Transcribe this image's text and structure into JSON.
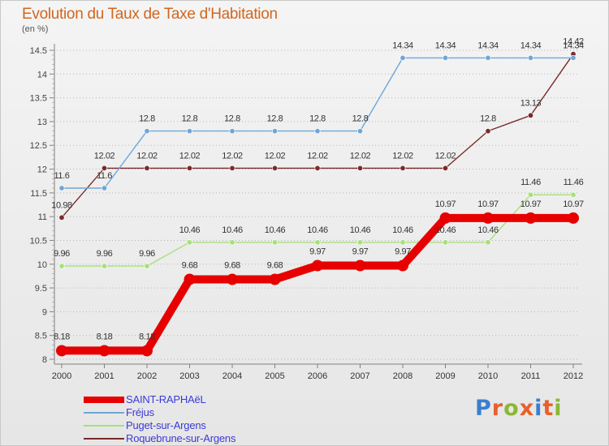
{
  "header": {
    "title": "Evolution du Taux de Taxe d'Habitation",
    "unit": "(en %)"
  },
  "logo": {
    "text": "Proxiti",
    "letter_colors": [
      "#3a7fcf",
      "#e8602c",
      "#8ab833",
      "#e8602c",
      "#3a7fcf",
      "#e8602c",
      "#8ab833"
    ]
  },
  "chart_data": {
    "type": "line",
    "title": "Evolution du Taux de Taxe d'Habitation",
    "ylabel": "(en %)",
    "xlabel": "",
    "x": [
      "2000",
      "2001",
      "2002",
      "2003",
      "2004",
      "2005",
      "2006",
      "2007",
      "2008",
      "2009",
      "2010",
      "2011",
      "2012"
    ],
    "ylim": [
      8,
      14.5
    ],
    "yticks": [
      "8",
      "8.5",
      "9",
      "9.5",
      "10",
      "10.5",
      "11",
      "11.5",
      "12",
      "12.5",
      "13",
      "13.5",
      "14",
      "14.5"
    ],
    "grid": "horizontal dotted",
    "step": true,
    "legend_position": "bottom-left",
    "series": [
      {
        "name": "SAINT-RAPHAëL",
        "color": "#e60000",
        "values": [
          8.18,
          8.18,
          8.18,
          9.68,
          9.68,
          9.68,
          9.97,
          9.97,
          9.97,
          10.97,
          10.97,
          10.97,
          10.97
        ],
        "labels": [
          "8.18",
          "8.18",
          "8.18",
          "9.68",
          "9.68",
          "9.68",
          "9.97",
          "9.97",
          "9.97",
          "10.97",
          "10.97",
          "10.97",
          "10.97"
        ]
      },
      {
        "name": "Fréjus",
        "color": "#6fa6d6",
        "values": [
          11.6,
          11.6,
          12.8,
          12.8,
          12.8,
          12.8,
          12.8,
          12.8,
          14.34,
          14.34,
          14.34,
          14.34,
          14.34
        ],
        "labels": [
          "11.6",
          "11.6",
          "12.8",
          "12.8",
          "12.8",
          "12.8",
          "12.8",
          "12.8",
          "14.34",
          "14.34",
          "14.34",
          "14.34",
          "14.34"
        ]
      },
      {
        "name": "Puget-sur-Argens",
        "color": "#a8df7a",
        "values": [
          9.96,
          9.96,
          9.96,
          10.46,
          10.46,
          10.46,
          10.46,
          10.46,
          10.46,
          10.46,
          10.46,
          11.46,
          11.46
        ],
        "labels": [
          "9.96",
          "9.96",
          "9.96",
          "10.46",
          "10.46",
          "10.46",
          "10.46",
          "10.46",
          "10.46",
          "10.46",
          "10.46",
          "11.46",
          "11.46"
        ]
      },
      {
        "name": "Roquebrune-sur-Argens",
        "color": "#7a2a2a",
        "values": [
          10.98,
          12.02,
          12.02,
          12.02,
          12.02,
          12.02,
          12.02,
          12.02,
          12.02,
          12.02,
          12.8,
          13.13,
          14.42
        ],
        "labels": [
          "10.98",
          "12.02",
          "12.02",
          "12.02",
          "12.02",
          "12.02",
          "12.02",
          "12.02",
          "12.02",
          "12.02",
          "12.8",
          "13.13",
          "14.42"
        ]
      }
    ]
  }
}
